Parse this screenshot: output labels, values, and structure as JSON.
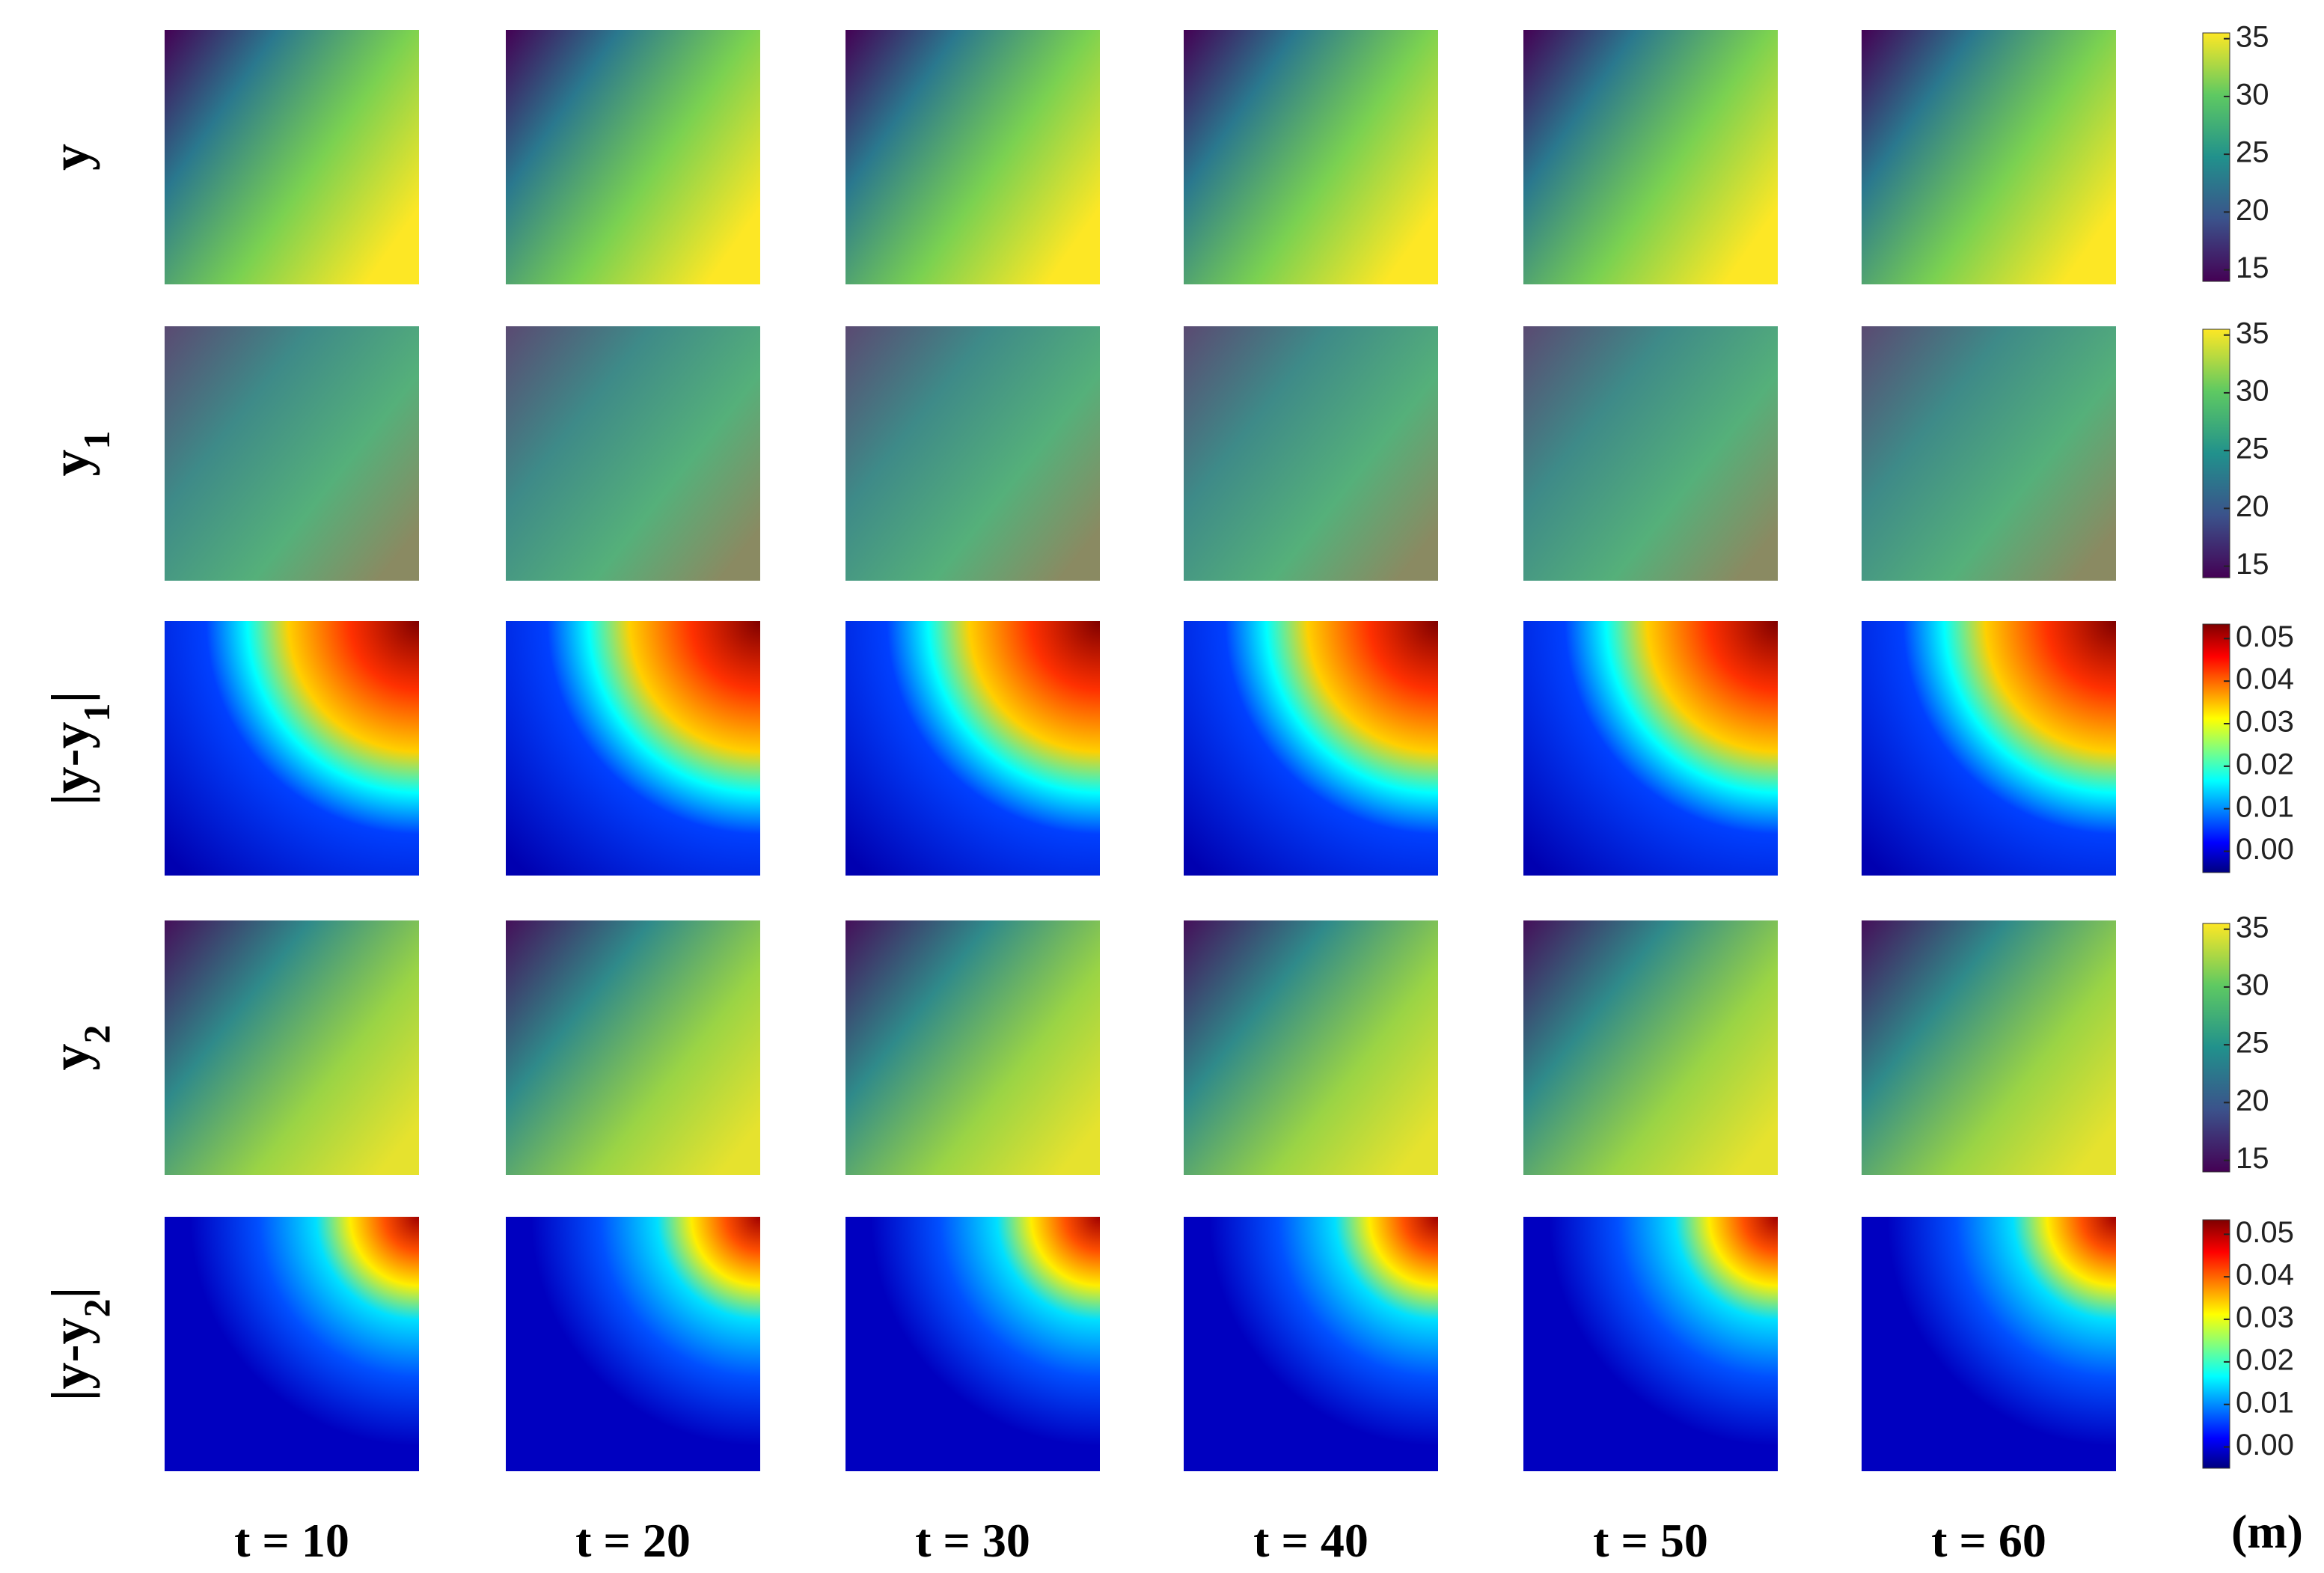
{
  "chart_data": {
    "type": "heatmap-grid",
    "columns": [
      "t = 10",
      "t = 20",
      "t = 30",
      "t = 40",
      "t = 50",
      "t = 60"
    ],
    "unit": "(m)",
    "rows": [
      {
        "label": [
          "y"
        ],
        "colorbar": {
          "colormap": "viridis",
          "lim": [
            14,
            35.5
          ],
          "ticks": [
            15,
            20,
            25,
            30,
            35
          ]
        }
      },
      {
        "label": [
          "y",
          "1"
        ],
        "colorbar": {
          "colormap": "viridis",
          "lim": [
            14,
            35.5
          ],
          "ticks": [
            15,
            20,
            25,
            30,
            35
          ]
        }
      },
      {
        "label": [
          "|y-y",
          "1",
          "|"
        ],
        "colorbar": {
          "colormap": "jet",
          "lim": [
            -0.005,
            0.0534
          ],
          "ticks": [
            {
              "value": 0,
              "label": "0.00"
            },
            {
              "value": 0.01,
              "label": "0.01"
            },
            {
              "value": 0.02,
              "label": "0.02"
            },
            {
              "value": 0.03,
              "label": "0.03"
            },
            {
              "value": 0.04,
              "label": "0.04"
            },
            {
              "value": 0.05,
              "label": "0.05"
            }
          ]
        }
      },
      {
        "label": [
          "y",
          "2"
        ],
        "colorbar": {
          "colormap": "viridis",
          "lim": [
            14,
            35.5
          ],
          "ticks": [
            15,
            20,
            25,
            30,
            35
          ]
        }
      },
      {
        "label": [
          "|y-y",
          "2",
          "|"
        ],
        "colorbar": {
          "colormap": "jet",
          "lim": [
            -0.005,
            0.0534
          ],
          "ticks": [
            {
              "value": 0,
              "label": "0.00"
            },
            {
              "value": 0.01,
              "label": "0.01"
            },
            {
              "value": 0.02,
              "label": "0.02"
            },
            {
              "value": 0.03,
              "label": "0.03"
            },
            {
              "value": 0.04,
              "label": "0.04"
            },
            {
              "value": 0.05,
              "label": "0.05"
            }
          ]
        }
      }
    ]
  }
}
